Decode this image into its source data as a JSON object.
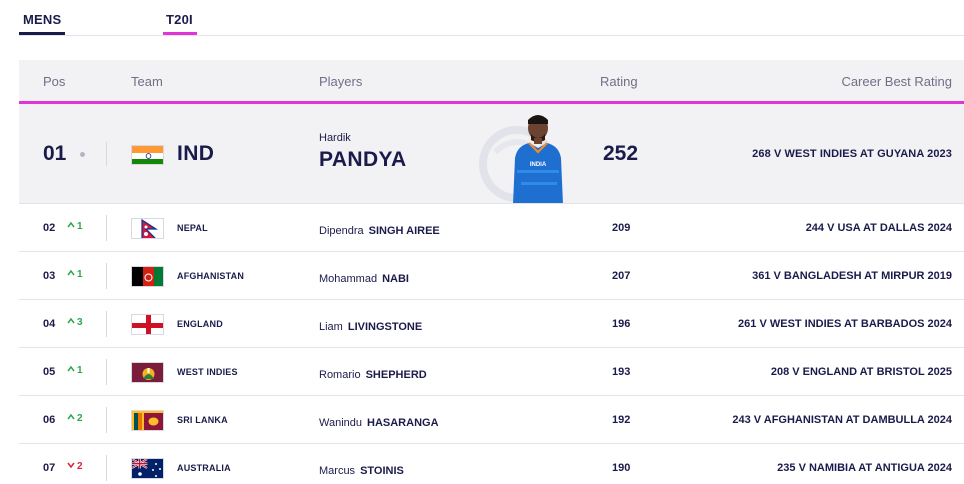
{
  "tabs": {
    "mens": "MENS",
    "t20i": "T20I"
  },
  "header": {
    "pos": "Pos",
    "team": "Team",
    "players": "Players",
    "rating": "Rating",
    "best": "Career Best Rating"
  },
  "top": {
    "pos": "01",
    "team": "IND",
    "first": "Hardik",
    "last": "PANDYA",
    "rating": "252",
    "best": "268 V WEST INDIES AT GUYANA 2023",
    "flag": "india-flag"
  },
  "rows": [
    {
      "pos": "02",
      "change": "1",
      "dir": "up",
      "team": "NEPAL",
      "first": "Dipendra",
      "last": "SINGH AIREE",
      "rating": "209",
      "best": "244 V USA AT DALLAS 2024"
    },
    {
      "pos": "03",
      "change": "1",
      "dir": "up",
      "team": "AFGHANISTAN",
      "first": "Mohammad",
      "last": "NABI",
      "rating": "207",
      "best": "361 V BANGLADESH AT MIRPUR 2019"
    },
    {
      "pos": "04",
      "change": "3",
      "dir": "up",
      "team": "ENGLAND",
      "first": "Liam",
      "last": "LIVINGSTONE",
      "rating": "196",
      "best": "261 V WEST INDIES AT BARBADOS 2024"
    },
    {
      "pos": "05",
      "change": "1",
      "dir": "up",
      "team": "WEST INDIES",
      "first": "Romario",
      "last": "SHEPHERD",
      "rating": "193",
      "best": "208 V ENGLAND AT BRISTOL 2025"
    },
    {
      "pos": "06",
      "change": "2",
      "dir": "up",
      "team": "SRI LANKA",
      "first": "Wanindu",
      "last": "HASARANGA",
      "rating": "192",
      "best": "243 V AFGHANISTAN AT DAMBULLA 2024"
    },
    {
      "pos": "07",
      "change": "2",
      "dir": "down",
      "team": "AUSTRALIA",
      "first": "Marcus",
      "last": "STOINIS",
      "rating": "190",
      "best": "235 V NAMIBIA AT ANTIGUA 2024"
    }
  ],
  "colors": {
    "accent": "#e034d6",
    "navy": "#1b1b4b",
    "up": "#2aa84a",
    "down": "#d8243c"
  }
}
